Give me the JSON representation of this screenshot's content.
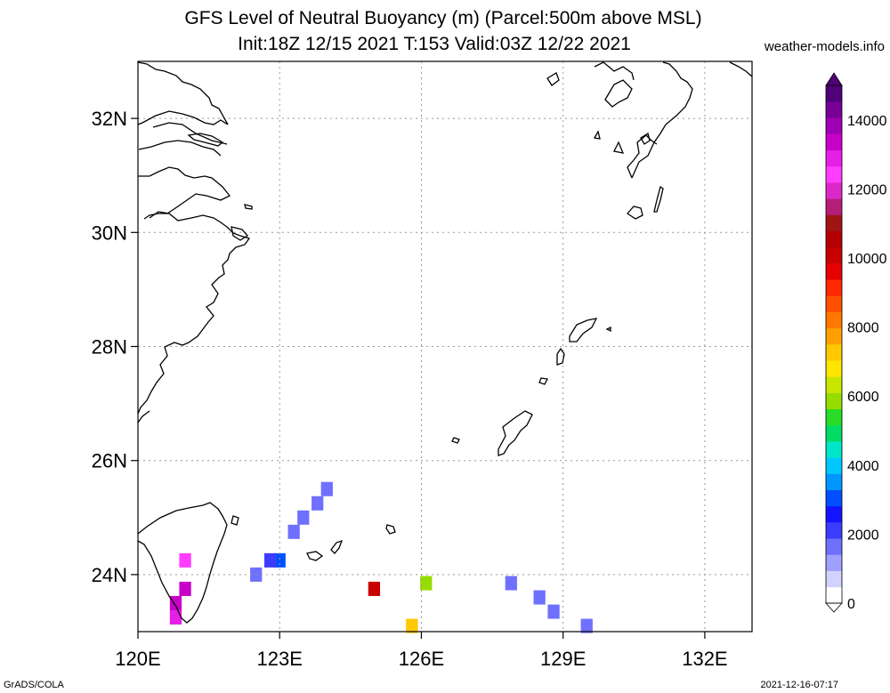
{
  "header": {
    "title_line1": "GFS Level of Neutral Buoyancy (m) (Parcel:500m above MSL)",
    "title_line2": "Init:18Z 12/15 2021 T:153 Valid:03Z 12/22 2021",
    "site": "weather-models.info"
  },
  "footer": {
    "left": "GrADS/COLA",
    "right": "2021-12-16-07:17"
  },
  "map": {
    "lon_range": [
      120,
      133
    ],
    "lat_range": [
      23,
      33
    ],
    "x_ticks": [
      {
        "value": 120,
        "label": "120E"
      },
      {
        "value": 123,
        "label": "123E"
      },
      {
        "value": 126,
        "label": "126E"
      },
      {
        "value": 129,
        "label": "129E"
      },
      {
        "value": 132,
        "label": "132E"
      }
    ],
    "y_ticks": [
      {
        "value": 24,
        "label": "24N"
      },
      {
        "value": 26,
        "label": "26N"
      },
      {
        "value": 28,
        "label": "28N"
      },
      {
        "value": 30,
        "label": "30N"
      },
      {
        "value": 32,
        "label": "32N"
      }
    ],
    "grid": true,
    "cells": [
      {
        "lon": 124.0,
        "lat": 25.5,
        "value": 1800
      },
      {
        "lon": 123.8,
        "lat": 25.25,
        "value": 1800
      },
      {
        "lon": 123.5,
        "lat": 25.0,
        "value": 1800
      },
      {
        "lon": 123.3,
        "lat": 24.75,
        "value": 1800
      },
      {
        "lon": 123.0,
        "lat": 24.25,
        "value": 3200
      },
      {
        "lon": 122.8,
        "lat": 24.25,
        "value": 2000
      },
      {
        "lon": 122.5,
        "lat": 24.0,
        "value": 1800
      },
      {
        "lon": 121.0,
        "lat": 24.25,
        "value": 12500
      },
      {
        "lon": 121.0,
        "lat": 23.75,
        "value": 13200
      },
      {
        "lon": 120.8,
        "lat": 23.5,
        "value": 13500
      },
      {
        "lon": 120.8,
        "lat": 23.25,
        "value": 12800
      },
      {
        "lon": 125.0,
        "lat": 23.75,
        "value": 10200
      },
      {
        "lon": 126.1,
        "lat": 23.85,
        "value": 5800
      },
      {
        "lon": 127.9,
        "lat": 23.85,
        "value": 1800
      },
      {
        "lon": 128.5,
        "lat": 23.6,
        "value": 1800
      },
      {
        "lon": 128.8,
        "lat": 23.35,
        "value": 1800
      },
      {
        "lon": 129.5,
        "lat": 23.1,
        "value": 1800
      },
      {
        "lon": 125.8,
        "lat": 23.1,
        "value": 7200
      }
    ]
  },
  "colorbar": {
    "labels": [
      "0",
      "2000",
      "4000",
      "6000",
      "8000",
      "10000",
      "12000",
      "14000"
    ],
    "min": 0,
    "max": 15000,
    "colors": [
      "#ffffff",
      "#d2d2ff",
      "#a0a0ff",
      "#7070ff",
      "#3c3cff",
      "#1414ff",
      "#0050ff",
      "#0096ff",
      "#00c8ff",
      "#00e6c8",
      "#00dc64",
      "#28dc28",
      "#96dc00",
      "#c8e600",
      "#ffe600",
      "#ffc800",
      "#ffa000",
      "#ff7800",
      "#ff5000",
      "#ff2800",
      "#e60000",
      "#c80000",
      "#b40000",
      "#a01414",
      "#b41e78",
      "#dc28c8",
      "#ff3cff",
      "#e61ee6",
      "#c800c8",
      "#a000b4",
      "#780096",
      "#500078"
    ]
  }
}
